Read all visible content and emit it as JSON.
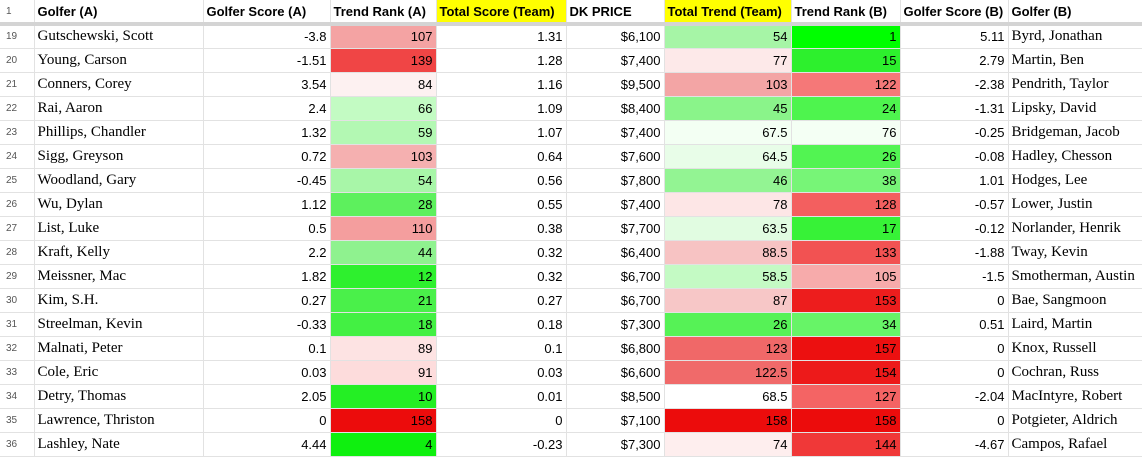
{
  "header": {
    "row_number": "1",
    "columns": [
      "Golfer (A)",
      "Golfer Score (A)",
      "Trend Rank (A)",
      "Total Score (Team)",
      "DK PRICE",
      "Total Trend (Team)",
      "Trend Rank (B)",
      "Golfer Score (B)",
      "Golfer (B)"
    ],
    "highlighted_columns": [
      3,
      5
    ],
    "highlight_color": "#ffff00"
  },
  "rows": [
    {
      "n": "19",
      "golfer_a": "Gutschewski, Scott",
      "score_a": "-3.8",
      "rank_a": "107",
      "total_score": "1.31",
      "price": "$6,100",
      "total_trend": "54",
      "rank_b": "1",
      "score_b": "5.11",
      "golfer_b": "Byrd, Jonathan",
      "rank_a_color": "#f4a3a3",
      "trend_color": "#a6f5a6",
      "rank_b_color": "#00ff00"
    },
    {
      "n": "20",
      "golfer_a": "Young, Carson",
      "score_a": "-1.51",
      "rank_a": "139",
      "total_score": "1.28",
      "price": "$7,400",
      "total_trend": "77",
      "rank_b": "15",
      "score_b": "2.79",
      "golfer_b": "Martin, Ben",
      "rank_a_color": "#f04545",
      "trend_color": "#fde9e9",
      "rank_b_color": "#2df02d"
    },
    {
      "n": "21",
      "golfer_a": "Conners, Corey",
      "score_a": "3.54",
      "rank_a": "84",
      "total_score": "1.16",
      "price": "$9,500",
      "total_trend": "103",
      "rank_b": "122",
      "score_b": "-2.38",
      "golfer_b": "Pendrith, Taylor",
      "rank_a_color": "#fdf1f1",
      "trend_color": "#f3a5a5",
      "rank_b_color": "#f57878"
    },
    {
      "n": "22",
      "golfer_a": "Rai, Aaron",
      "score_a": "2.4",
      "rank_a": "66",
      "total_score": "1.09",
      "price": "$8,400",
      "total_trend": "45",
      "rank_b": "24",
      "score_b": "-1.31",
      "golfer_b": "Lipsky, David",
      "rank_a_color": "#c3fbc3",
      "trend_color": "#8af48a",
      "rank_b_color": "#4ef44e"
    },
    {
      "n": "23",
      "golfer_a": "Phillips, Chandler",
      "score_a": "1.32",
      "rank_a": "59",
      "total_score": "1.07",
      "price": "$7,400",
      "total_trend": "67.5",
      "rank_b": "76",
      "score_b": "-0.25",
      "golfer_b": "Bridgeman, Jacob",
      "rank_a_color": "#b3f8b3",
      "trend_color": "#f3fff3",
      "rank_b_color": "#f4fff4"
    },
    {
      "n": "24",
      "golfer_a": "Sigg, Greyson",
      "score_a": "0.72",
      "rank_a": "103",
      "total_score": "0.64",
      "price": "$7,600",
      "total_trend": "64.5",
      "rank_b": "26",
      "score_b": "-0.08",
      "golfer_b": "Hadley, Chesson",
      "rank_a_color": "#f5b0b0",
      "trend_color": "#e8fde8",
      "rank_b_color": "#52f452"
    },
    {
      "n": "25",
      "golfer_a": "Woodland, Gary",
      "score_a": "-0.45",
      "rank_a": "54",
      "total_score": "0.56",
      "price": "$7,800",
      "total_trend": "46",
      "rank_b": "38",
      "score_b": "1.01",
      "golfer_b": "Hodges, Lee",
      "rank_a_color": "#a8f6a8",
      "trend_color": "#93f493",
      "rank_b_color": "#77f577"
    },
    {
      "n": "26",
      "golfer_a": "Wu, Dylan",
      "score_a": "1.12",
      "rank_a": "28",
      "total_score": "0.55",
      "price": "$7,400",
      "total_trend": "78",
      "rank_b": "128",
      "score_b": "-0.57",
      "golfer_b": "Lower, Justin",
      "rank_a_color": "#5df05d",
      "trend_color": "#fde6e6",
      "rank_b_color": "#f35f5f"
    },
    {
      "n": "27",
      "golfer_a": "List, Luke",
      "score_a": "0.5",
      "rank_a": "110",
      "total_score": "0.38",
      "price": "$7,700",
      "total_trend": "63.5",
      "rank_b": "17",
      "score_b": "-0.12",
      "golfer_b": "Norlander, Henrik",
      "rank_a_color": "#f49e9e",
      "trend_color": "#e1fce1",
      "rank_b_color": "#37f237"
    },
    {
      "n": "28",
      "golfer_a": "Kraft, Kelly",
      "score_a": "2.2",
      "rank_a": "44",
      "total_score": "0.32",
      "price": "$6,400",
      "total_trend": "88.5",
      "rank_b": "133",
      "score_b": "-1.88",
      "golfer_b": "Tway, Kevin",
      "rank_a_color": "#8ff28f",
      "trend_color": "#f7c3c3",
      "rank_b_color": "#f25252"
    },
    {
      "n": "29",
      "golfer_a": "Meissner, Mac",
      "score_a": "1.82",
      "rank_a": "12",
      "total_score": "0.32",
      "price": "$6,700",
      "total_trend": "58.5",
      "rank_b": "105",
      "score_b": "-1.5",
      "golfer_b": "Smotherman, Austin",
      "rank_a_color": "#2ef02e",
      "trend_color": "#c4fac4",
      "rank_b_color": "#f7abab"
    },
    {
      "n": "30",
      "golfer_a": "Kim, S.H.",
      "score_a": "0.27",
      "rank_a": "21",
      "total_score": "0.27",
      "price": "$6,700",
      "total_trend": "87",
      "rank_b": "153",
      "score_b": "0",
      "golfer_b": "Bae, Sangmoon",
      "rank_a_color": "#4af04a",
      "trend_color": "#f7c7c7",
      "rank_b_color": "#ed1d1d"
    },
    {
      "n": "31",
      "golfer_a": "Streelman, Kevin",
      "score_a": "-0.33",
      "rank_a": "18",
      "total_score": "0.18",
      "price": "$7,300",
      "total_trend": "26",
      "rank_b": "34",
      "score_b": "0.51",
      "golfer_b": "Laird, Martin",
      "rank_a_color": "#43f043",
      "trend_color": "#56f256",
      "rank_b_color": "#67f467"
    },
    {
      "n": "32",
      "golfer_a": "Malnati, Peter",
      "score_a": "0.1",
      "rank_a": "89",
      "total_score": "0.1",
      "price": "$6,800",
      "total_trend": "123",
      "rank_b": "157",
      "score_b": "0",
      "golfer_b": "Knox, Russell",
      "rank_a_color": "#fde3e3",
      "trend_color": "#f06868",
      "rank_b_color": "#ec1010"
    },
    {
      "n": "33",
      "golfer_a": "Cole, Eric",
      "score_a": "0.03",
      "rank_a": "91",
      "total_score": "0.03",
      "price": "$6,600",
      "total_trend": "122.5",
      "rank_b": "154",
      "score_b": "0",
      "golfer_b": "Cochran, Russ",
      "rank_a_color": "#fddcdc",
      "trend_color": "#f06a6a",
      "rank_b_color": "#ed1a1a"
    },
    {
      "n": "34",
      "golfer_a": "Detry, Thomas",
      "score_a": "2.05",
      "rank_a": "10",
      "total_score": "0.01",
      "price": "$8,500",
      "total_trend": "68.5",
      "rank_b": "127",
      "score_b": "-2.04",
      "golfer_b": "MacIntyre, Robert",
      "rank_a_color": "#24ef24",
      "trend_color": "#ffffff",
      "rank_b_color": "#f46464"
    },
    {
      "n": "35",
      "golfer_a": "Lawrence, Thriston",
      "score_a": "0",
      "rank_a": "158",
      "total_score": "0",
      "price": "$7,100",
      "total_trend": "158",
      "rank_b": "158",
      "score_b": "0",
      "golfer_b": "Potgieter, Aldrich",
      "rank_a_color": "#ec0c0c",
      "trend_color": "#ec0c0c",
      "rank_b_color": "#ec0c0c"
    },
    {
      "n": "36",
      "golfer_a": "Lashley, Nate",
      "score_a": "4.44",
      "rank_a": "4",
      "total_score": "-0.23",
      "price": "$7,300",
      "total_trend": "74",
      "rank_b": "144",
      "score_b": "-4.67",
      "golfer_b": "Campos, Rafael",
      "rank_a_color": "#0ff00f",
      "trend_color": "#feeeee",
      "rank_b_color": "#f03838"
    }
  ]
}
